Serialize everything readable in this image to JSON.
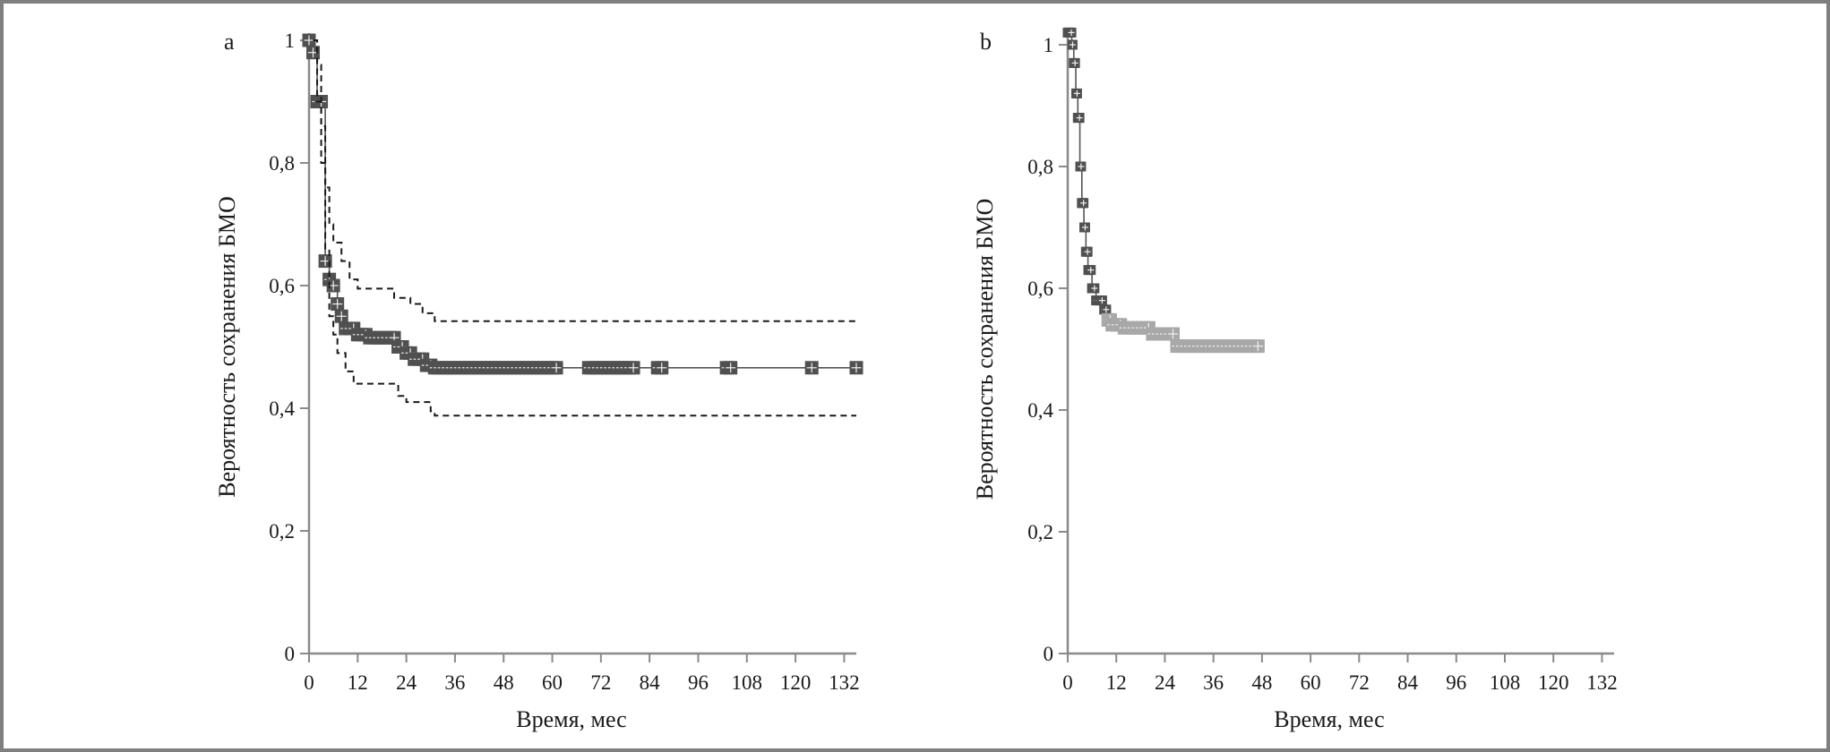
{
  "colors": {
    "axis": "#8a8a8a",
    "marker_dark": "#505050",
    "marker_light": "#a8a8a8",
    "line": "#555555",
    "ci_line": "#1a1a1a"
  },
  "chart_data": [
    {
      "type": "line",
      "panel_label": "a",
      "xlabel": "Время, мес",
      "ylabel": "Вероятность сохранения БМО",
      "xlim": [
        0,
        135
      ],
      "ylim": [
        0,
        1
      ],
      "x_ticks": [
        "0",
        "12",
        "24",
        "36",
        "48",
        "60",
        "72",
        "84",
        "96",
        "108",
        "120",
        "132"
      ],
      "y_ticks": [
        "0",
        "0,2",
        "0,4",
        "0,6",
        "0,8",
        "1"
      ],
      "series": [
        {
          "role": "survival",
          "style": "solid",
          "steps": [
            [
              0,
              1
            ],
            [
              1,
              0.98
            ],
            [
              2,
              0.9
            ],
            [
              4,
              0.64
            ],
            [
              5,
              0.61
            ],
            [
              6,
              0.6
            ],
            [
              7,
              0.57
            ],
            [
              8,
              0.55
            ],
            [
              9,
              0.53
            ],
            [
              12,
              0.52
            ],
            [
              15,
              0.515
            ],
            [
              22,
              0.5
            ],
            [
              24,
              0.49
            ],
            [
              26,
              0.48
            ],
            [
              29,
              0.47
            ],
            [
              31,
              0.466
            ],
            [
              135,
              0.466
            ]
          ],
          "censored": [
            0,
            1,
            2,
            3,
            4,
            5,
            6,
            7,
            8,
            9,
            10,
            11,
            12,
            13,
            14,
            15,
            16,
            17,
            18,
            19,
            20,
            21,
            22,
            23,
            24,
            25,
            26,
            27,
            28,
            29,
            30,
            31,
            32,
            33,
            34,
            35,
            36,
            37,
            38,
            39,
            40,
            41,
            42,
            43,
            44,
            45,
            46,
            47,
            48,
            49,
            50,
            51,
            52,
            53,
            54,
            55,
            56,
            57,
            58,
            59,
            60,
            61,
            69,
            70,
            71,
            72,
            73,
            74,
            75,
            76,
            77,
            78,
            79,
            80,
            86,
            87,
            103,
            104,
            124,
            135
          ]
        },
        {
          "role": "upper_ci",
          "style": "dashed",
          "steps": [
            [
              1,
              1
            ],
            [
              2,
              0.96
            ],
            [
              3,
              0.86
            ],
            [
              4,
              0.76
            ],
            [
              5,
              0.7
            ],
            [
              6,
              0.67
            ],
            [
              8,
              0.64
            ],
            [
              10,
              0.61
            ],
            [
              12,
              0.595
            ],
            [
              21,
              0.58
            ],
            [
              25,
              0.57
            ],
            [
              28,
              0.555
            ],
            [
              31,
              0.542
            ],
            [
              135,
              0.542
            ]
          ]
        },
        {
          "role": "lower_ci",
          "style": "dashed",
          "steps": [
            [
              1,
              1
            ],
            [
              2,
              0.9
            ],
            [
              3,
              0.8
            ],
            [
              4,
              0.66
            ],
            [
              5,
              0.55
            ],
            [
              6,
              0.52
            ],
            [
              7,
              0.49
            ],
            [
              9,
              0.46
            ],
            [
              11,
              0.44
            ],
            [
              22,
              0.42
            ],
            [
              24,
              0.41
            ],
            [
              30,
              0.395
            ],
            [
              31,
              0.388
            ],
            [
              135,
              0.388
            ]
          ]
        }
      ]
    },
    {
      "type": "line",
      "panel_label": "b",
      "xlabel": "Время, мес",
      "ylabel": "Вероятность сохранения БМО",
      "xlim": [
        0,
        135
      ],
      "ylim": [
        0,
        1
      ],
      "x_ticks": [
        "0",
        "12",
        "24",
        "36",
        "48",
        "60",
        "72",
        "84",
        "96",
        "108",
        "120",
        "132"
      ],
      "y_ticks": [
        "0",
        "0,2",
        "0,4",
        "0,6",
        "0,8",
        "1"
      ],
      "series": [
        {
          "role": "survival",
          "style": "solid",
          "steps": [
            [
              0,
              1.02
            ],
            [
              1,
              1
            ],
            [
              1.5,
              0.97
            ],
            [
              2,
              0.92
            ],
            [
              2.5,
              0.88
            ],
            [
              3,
              0.8
            ],
            [
              3.5,
              0.74
            ],
            [
              4,
              0.7
            ],
            [
              4.5,
              0.66
            ],
            [
              5,
              0.63
            ],
            [
              6,
              0.6
            ],
            [
              7,
              0.58
            ],
            [
              9,
              0.565
            ],
            [
              10,
              0.548
            ],
            [
              11,
              0.54
            ],
            [
              14,
              0.535
            ],
            [
              20,
              0.535
            ],
            [
              21,
              0.525
            ],
            [
              27,
              0.505
            ],
            [
              47,
              0.505
            ]
          ],
          "censored": [
            0,
            0.3,
            0.6,
            0.9,
            1.2,
            1.5,
            1.8,
            2.1,
            2.3,
            2.5,
            2.7,
            2.9,
            3.1,
            3.3,
            3.5,
            3.7,
            3.9,
            4.1,
            4.3,
            4.5,
            4.7,
            4.9,
            5.1,
            5.4,
            5.7,
            6,
            6.3,
            6.6,
            7,
            7.5,
            8,
            8.5,
            9,
            9.5,
            10,
            10.5,
            11,
            12,
            13,
            14,
            15,
            16,
            17,
            18,
            19,
            20,
            21,
            22,
            23,
            24,
            25,
            26,
            27,
            28,
            29,
            30,
            31,
            32,
            33,
            34,
            35,
            36,
            37,
            38,
            39,
            40,
            41,
            42,
            43,
            44,
            45,
            46,
            47
          ]
        }
      ]
    }
  ]
}
